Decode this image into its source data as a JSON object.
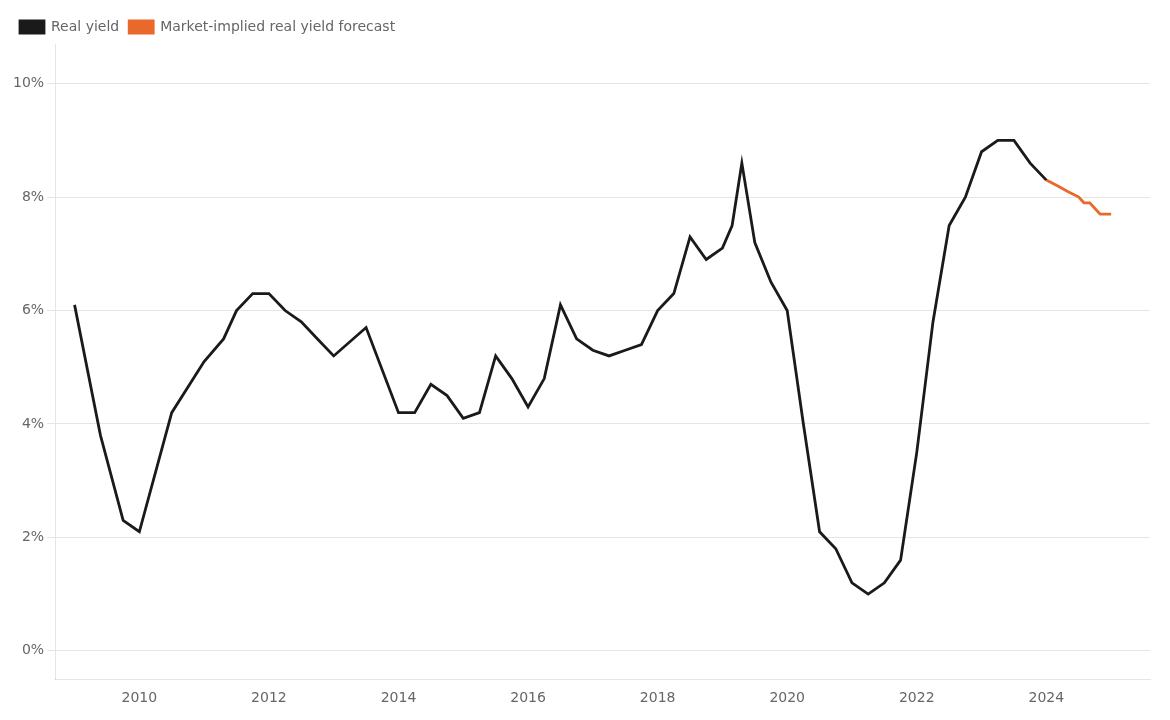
{
  "chart_data": {
    "type": "line",
    "series": [
      {
        "name": "Real yield",
        "color": "#1a1a1a",
        "x": [
          2009.0,
          2009.4,
          2009.75,
          2010.0,
          2010.5,
          2011.0,
          2011.3,
          2011.5,
          2011.75,
          2012.0,
          2012.25,
          2012.5,
          2012.75,
          2013.0,
          2013.5,
          2014.0,
          2014.25,
          2014.5,
          2014.75,
          2015.0,
          2015.25,
          2015.5,
          2015.75,
          2016.0,
          2016.25,
          2016.5,
          2016.75,
          2017.0,
          2017.25,
          2017.5,
          2017.75,
          2018.0,
          2018.25,
          2018.5,
          2018.75,
          2019.0,
          2019.15,
          2019.3,
          2019.5,
          2019.75,
          2020.0,
          2020.25,
          2020.5,
          2020.75,
          2021.0,
          2021.25,
          2021.5,
          2021.75,
          2022.0,
          2022.25,
          2022.5,
          2022.75,
          2023.0,
          2023.25,
          2023.5,
          2023.75,
          2024.0
        ],
        "values": [
          0.061,
          0.038,
          0.023,
          0.021,
          0.042,
          0.051,
          0.055,
          0.06,
          0.063,
          0.063,
          0.06,
          0.058,
          0.055,
          0.052,
          0.057,
          0.042,
          0.042,
          0.047,
          0.045,
          0.041,
          0.042,
          0.052,
          0.048,
          0.043,
          0.048,
          0.061,
          0.055,
          0.053,
          0.052,
          0.053,
          0.054,
          0.06,
          0.063,
          0.073,
          0.069,
          0.071,
          0.075,
          0.086,
          0.072,
          0.065,
          0.06,
          0.04,
          0.021,
          0.018,
          0.012,
          0.01,
          0.012,
          0.016,
          0.035,
          0.058,
          0.075,
          0.08,
          0.088,
          0.09,
          0.09,
          0.086,
          0.083
        ]
      },
      {
        "name": "Market-implied real yield forecast",
        "color": "#E8692A",
        "x": [
          2024.0,
          2024.17,
          2024.33,
          2024.5,
          2024.58,
          2024.67,
          2024.75,
          2024.83,
          2025.0
        ],
        "values": [
          0.083,
          0.082,
          0.081,
          0.08,
          0.079,
          0.079,
          0.078,
          0.077,
          0.077
        ]
      }
    ],
    "xlim": [
      2008.7,
      2025.6
    ],
    "xticks": [
      2010,
      2012,
      2014,
      2016,
      2018,
      2020,
      2022,
      2024
    ],
    "ylim": [
      -0.005,
      0.107
    ],
    "yticks": [
      {
        "value": 0.0,
        "label": "0%"
      },
      {
        "value": 0.02,
        "label": "2%"
      },
      {
        "value": 0.04,
        "label": "4%"
      },
      {
        "value": 0.06,
        "label": "6%"
      },
      {
        "value": 0.08,
        "label": "8%"
      },
      {
        "value": 0.1,
        "label": "10%"
      }
    ],
    "grid": "y",
    "legend": "upper left"
  }
}
